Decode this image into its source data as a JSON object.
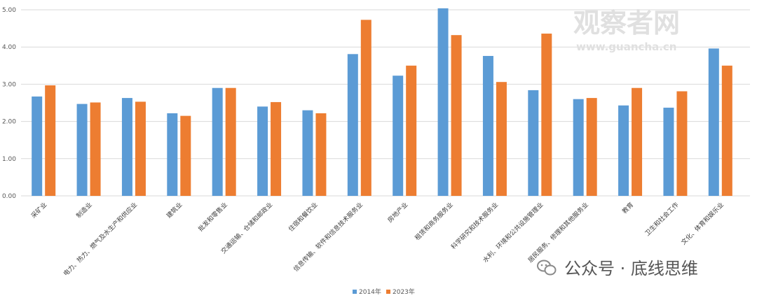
{
  "chart_data": {
    "type": "bar",
    "categories": [
      "采矿业",
      "制造业",
      "电力、热力、燃气及水生产和供应业",
      "建筑业",
      "批发和零售业",
      "交通运输、仓储和邮政业",
      "住宿和餐饮业",
      "信息传输、软件和信息技术服务业",
      "房地产业",
      "租赁和商务服务业",
      "科学研究和技术服务业",
      "水利、环境和公共设施管理业",
      "居民服务、修理和其他服务业",
      "教育",
      "卫生和社会工作",
      "文化、体育和娱乐业"
    ],
    "series": [
      {
        "name": "2014年",
        "color": "#5b9bd5",
        "values": [
          2.67,
          2.47,
          2.63,
          2.22,
          2.9,
          2.4,
          2.3,
          3.81,
          3.23,
          5.04,
          3.76,
          2.84,
          2.6,
          2.43,
          2.37,
          3.96
        ]
      },
      {
        "name": "2023年",
        "color": "#ed7d31",
        "values": [
          2.97,
          2.51,
          2.53,
          2.15,
          2.9,
          2.52,
          2.22,
          4.73,
          3.5,
          4.32,
          3.06,
          4.36,
          2.63,
          2.9,
          2.81,
          3.5
        ]
      }
    ],
    "yticks": [
      "0.00",
      "1.00",
      "2.00",
      "3.00",
      "4.00",
      "5.00"
    ],
    "ylim": [
      0,
      5
    ],
    "grid": true,
    "legend_position": "bottom-center"
  },
  "watermark": {
    "main": "观察者网",
    "sub": "www.guancha.cn",
    "account": "公众号 · 底线思维"
  }
}
